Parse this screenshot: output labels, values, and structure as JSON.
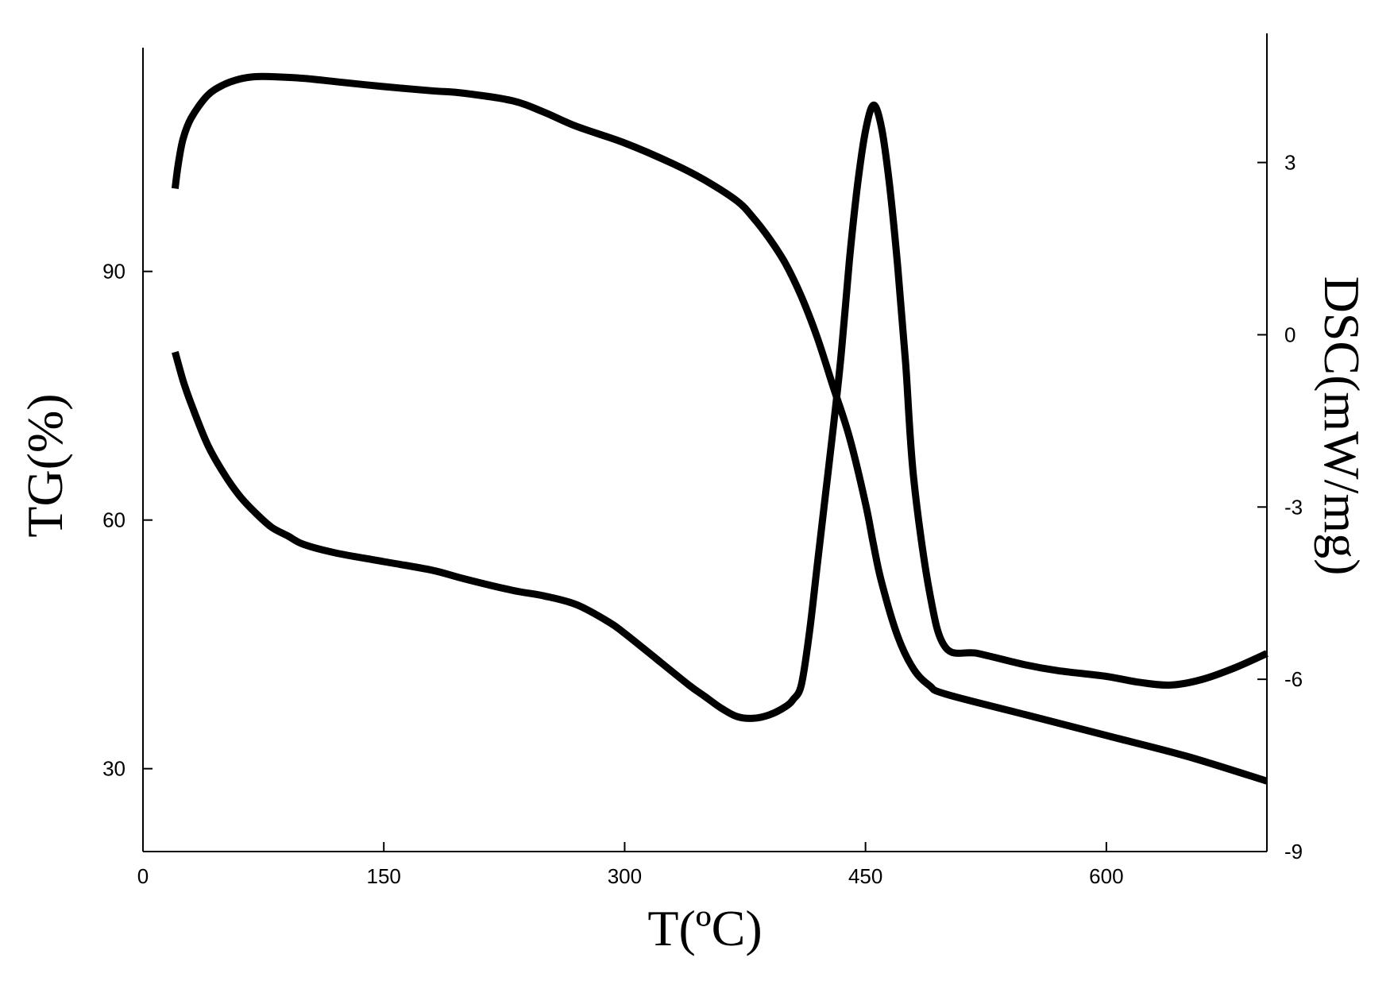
{
  "chart_data": {
    "type": "line",
    "xlabel": "T(ºC)",
    "ylabel_left": "TG(%)",
    "ylabel_right": "DSC(mW/mg)",
    "xlim": [
      0,
      700
    ],
    "ylim_left": [
      20,
      117
    ],
    "ylim_right": [
      -9,
      5
    ],
    "x_ticks": [
      0,
      150,
      300,
      450,
      600
    ],
    "y_ticks_left": [
      30,
      60,
      90
    ],
    "y_ticks_right": [
      3,
      0,
      -3,
      -6,
      -9
    ],
    "series": [
      {
        "axis": "left",
        "x": [
          20,
          22,
          25,
          30,
          40,
          50,
          60,
          70,
          80,
          100,
          120,
          150,
          180,
          200,
          230,
          250,
          270,
          300,
          330,
          350,
          370,
          380,
          390,
          400,
          410,
          420,
          430,
          440,
          450,
          455,
          460,
          470,
          480,
          490,
          500,
          550,
          600,
          650,
          700
        ],
        "y": [
          100,
          103,
          106,
          108.5,
          111.2,
          112.5,
          113.2,
          113.5,
          113.5,
          113.3,
          112.9,
          112.3,
          111.8,
          111.5,
          110.6,
          109.2,
          107.5,
          105.5,
          103,
          101,
          98.5,
          96.5,
          94,
          91,
          87,
          82,
          76,
          70,
          62,
          57,
          52.5,
          46,
          42,
          40,
          39,
          36.5,
          34,
          31.5,
          28.5
        ]
      },
      {
        "axis": "right",
        "x": [
          20,
          25,
          30,
          40,
          50,
          60,
          70,
          80,
          90,
          100,
          120,
          150,
          180,
          200,
          230,
          250,
          270,
          290,
          300,
          320,
          340,
          350,
          360,
          370,
          380,
          390,
          400,
          405,
          410,
          415,
          420,
          425,
          430,
          435,
          440,
          445,
          450,
          455,
          460,
          465,
          470,
          475,
          480,
          490,
          500,
          520,
          550,
          570,
          600,
          620,
          640,
          660,
          680,
          700
        ],
        "y": [
          -0.3,
          -0.8,
          -1.2,
          -1.9,
          -2.4,
          -2.8,
          -3.1,
          -3.35,
          -3.5,
          -3.65,
          -3.8,
          -3.95,
          -4.1,
          -4.25,
          -4.45,
          -4.55,
          -4.7,
          -5.0,
          -5.2,
          -5.65,
          -6.1,
          -6.3,
          -6.5,
          -6.65,
          -6.68,
          -6.62,
          -6.48,
          -6.35,
          -6.1,
          -5.2,
          -4.0,
          -2.8,
          -1.6,
          -0.3,
          1.3,
          2.6,
          3.55,
          4.0,
          3.6,
          2.6,
          1.2,
          -0.5,
          -2.5,
          -4.5,
          -5.45,
          -5.55,
          -5.75,
          -5.85,
          -5.95,
          -6.05,
          -6.1,
          -6.0,
          -5.8,
          -5.55
        ]
      }
    ]
  }
}
